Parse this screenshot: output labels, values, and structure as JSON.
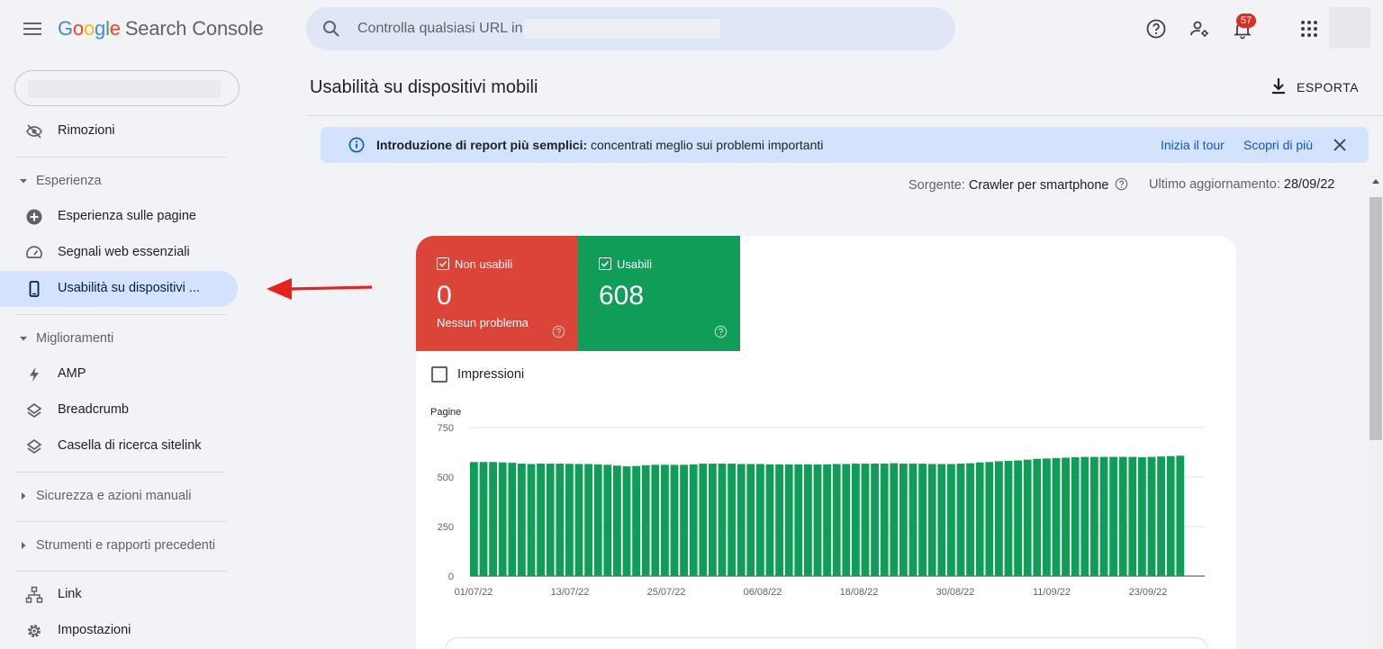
{
  "app": {
    "logo_letters": [
      "G",
      "o",
      "o",
      "g",
      "l",
      "e"
    ],
    "logo_product": "Search Console"
  },
  "search": {
    "placeholder": "Controlla qualsiasi URL in"
  },
  "topbar": {
    "notifications_count": "57"
  },
  "sidebar": {
    "items_top": [
      {
        "label": "Rimozioni",
        "icon": "eye-off-icon"
      }
    ],
    "sections": [
      {
        "label": "Esperienza",
        "expanded": true
      },
      {
        "label": "Miglioramenti",
        "expanded": true
      },
      {
        "label": "Sicurezza e azioni manuali",
        "expanded": false
      },
      {
        "label": "Strumenti e rapporti precedenti",
        "expanded": false
      }
    ],
    "experience_items": [
      {
        "label": "Esperienza sulle pagine",
        "icon": "plus-circle-icon"
      },
      {
        "label": "Segnali web essenziali",
        "icon": "speed-gauge-icon"
      },
      {
        "label": "Usabilità su dispositivi ...",
        "icon": "smartphone-icon",
        "active": true
      }
    ],
    "enhancement_items": [
      {
        "label": "AMP",
        "icon": "bolt-icon"
      },
      {
        "label": "Breadcrumb",
        "icon": "layers-icon"
      },
      {
        "label": "Casella di ricerca sitelink",
        "icon": "layers-icon"
      }
    ],
    "bottom_items": [
      {
        "label": "Link",
        "icon": "sitemap-icon"
      },
      {
        "label": "Impostazioni",
        "icon": "settings-icon"
      }
    ]
  },
  "main": {
    "title": "Usabilità su dispositivi mobili",
    "export_label": "ESPORTA",
    "banner": {
      "bold_text": "Introduzione di report più semplici:",
      "text": " concentrati meglio sui problemi importanti",
      "link_tour": "Inizia il tour",
      "link_more": "Scopri di più"
    },
    "source_label": "Sorgente:",
    "source_value": "Crawler per smartphone",
    "updated_label": "Ultimo aggiornamento:",
    "updated_value": "28/09/22",
    "tiles": [
      {
        "label": "Non usabili",
        "value": "0",
        "sub": "Nessun problema",
        "color": "#db4437"
      },
      {
        "label": "Usabili",
        "value": "608",
        "sub": "",
        "color": "#0f9d58"
      }
    ],
    "impressions_label": "Impressioni"
  },
  "colors": {
    "accent": "#0b57d0",
    "active_nav": "#d3e3fd",
    "usable": "#0f9d58",
    "not_usable": "#db4437"
  },
  "chart_data": {
    "type": "bar",
    "ylabel": "Pagine",
    "ylim": [
      0,
      750
    ],
    "yticks": [
      "750",
      "500",
      "250",
      "0"
    ],
    "xticks": [
      "01/07/22",
      "13/07/22",
      "25/07/22",
      "06/08/22",
      "18/08/22",
      "30/08/22",
      "11/09/22",
      "23/09/22"
    ],
    "series": [
      {
        "color": "#0f9d58",
        "values": [
          576,
          576,
          576,
          574,
          572,
          568,
          566,
          568,
          568,
          568,
          567,
          566,
          566,
          564,
          562,
          558,
          554,
          556,
          560,
          562,
          562,
          562,
          562,
          564,
          568,
          568,
          568,
          568,
          566,
          566,
          566,
          564,
          564,
          564,
          564,
          564,
          564,
          564,
          566,
          566,
          568,
          568,
          568,
          568,
          570,
          568,
          568,
          568,
          566,
          566,
          566,
          568,
          570,
          574,
          576,
          580,
          582,
          584,
          588,
          592,
          594,
          596,
          598,
          600,
          602,
          602,
          602,
          602,
          602,
          602,
          600,
          602,
          604,
          606,
          608
        ]
      }
    ]
  }
}
